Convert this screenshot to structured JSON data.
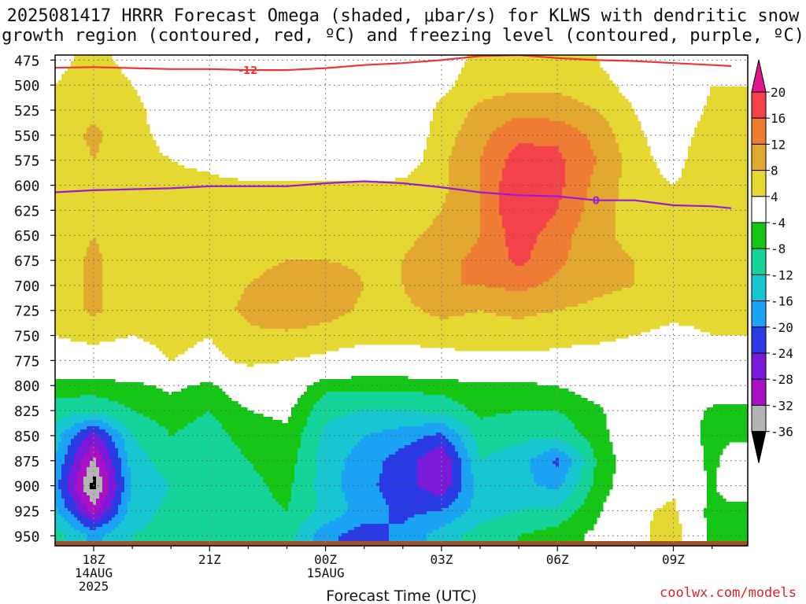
{
  "title": {
    "line1": "2025081417 HRRR Forecast Omega (shaded, μbar/s) for KLWS with dendritic snow",
    "line2": "growth region (contoured, red, ºC) and freezing level (contoured, purple, ºC)"
  },
  "credit": "coolwx.com/models",
  "chart_data": {
    "type": "heatmap",
    "xlabel": "Forecast Time (UTC)",
    "ylabel": "",
    "x": [
      "16.5Z",
      "17Z",
      "18Z",
      "19Z",
      "20Z",
      "21Z",
      "22Z",
      "23Z",
      "00Z",
      "01Z",
      "02Z",
      "03Z",
      "04Z",
      "05Z",
      "06Z",
      "07Z",
      "08Z",
      "09Z",
      "10Z",
      "10.5Z"
    ],
    "x_ticks": [
      {
        "label": "18Z",
        "sub": [
          "14AUG",
          "2025"
        ]
      },
      {
        "label": "21Z",
        "sub": []
      },
      {
        "label": "00Z",
        "sub": [
          "15AUG"
        ]
      },
      {
        "label": "03Z",
        "sub": []
      },
      {
        "label": "06Z",
        "sub": []
      },
      {
        "label": "09Z",
        "sub": []
      }
    ],
    "y_levels": [
      475,
      500,
      525,
      550,
      575,
      600,
      625,
      650,
      675,
      700,
      725,
      750,
      775,
      800,
      825,
      850,
      875,
      900,
      925,
      950
    ],
    "y_ticks": [
      "475",
      "500",
      "525",
      "550",
      "575",
      "600",
      "625",
      "650",
      "675",
      "700",
      "725",
      "750",
      "775",
      "800",
      "825",
      "850",
      "875",
      "900",
      "925",
      "950"
    ],
    "ylim": [
      470,
      960
    ],
    "omega": [
      [
        0,
        3,
        5,
        3,
        0,
        0,
        0,
        0,
        0,
        0,
        0,
        2,
        5,
        5,
        5,
        4,
        0,
        0,
        0,
        0
      ],
      [
        0,
        4,
        6,
        4,
        1,
        0,
        0,
        0,
        0,
        0,
        0,
        3,
        6,
        7,
        7,
        6,
        2,
        0,
        4,
        4
      ],
      [
        0,
        5,
        7,
        5,
        2,
        0,
        0,
        0,
        0,
        0,
        0,
        5,
        9,
        11,
        10,
        8,
        4,
        0,
        5,
        5
      ],
      [
        0,
        5,
        9,
        5,
        3,
        1,
        0,
        0,
        0,
        0,
        0,
        6,
        11,
        15,
        15,
        11,
        5,
        1,
        7,
        7
      ],
      [
        0,
        5,
        8,
        5,
        4,
        3,
        0,
        0,
        0,
        0,
        1,
        7,
        12,
        18,
        17,
        12,
        6,
        2,
        8,
        7
      ],
      [
        0,
        5,
        7,
        5,
        5,
        5,
        5,
        5,
        5,
        5,
        5,
        7,
        12,
        20,
        17,
        11,
        6,
        4,
        7,
        6
      ],
      [
        0,
        5,
        8,
        5,
        6,
        5,
        5,
        5,
        6,
        5,
        6,
        8,
        12,
        20,
        16,
        10,
        6,
        5,
        5,
        5
      ],
      [
        0,
        5,
        8,
        5,
        7,
        5,
        5,
        6,
        6,
        6,
        7,
        9,
        12,
        18,
        14,
        9,
        7,
        6,
        5,
        5
      ],
      [
        0,
        5,
        9,
        5,
        8,
        6,
        6,
        8,
        8,
        7,
        8,
        11,
        13,
        17,
        13,
        9,
        8,
        7,
        5,
        5
      ],
      [
        0,
        5,
        9,
        5,
        7,
        6,
        8,
        11,
        12,
        8,
        8,
        12,
        12,
        13,
        11,
        9,
        8,
        6,
        5,
        5
      ],
      [
        0,
        5,
        9,
        5,
        6,
        6,
        9,
        12,
        10,
        7,
        7,
        9,
        8,
        9,
        8,
        7,
        6,
        5,
        5,
        5
      ],
      [
        0,
        4,
        5,
        4,
        5,
        4,
        7,
        7,
        6,
        5,
        5,
        6,
        6,
        6,
        5,
        5,
        4,
        3,
        4,
        4
      ],
      [
        0,
        2,
        2,
        2,
        4,
        3,
        5,
        4,
        3,
        2,
        2,
        2,
        3,
        3,
        3,
        2,
        1,
        0,
        0,
        0
      ],
      [
        0,
        -6,
        -6,
        -5,
        -3,
        -5,
        0,
        0,
        -7,
        -7,
        -7,
        -6,
        -5,
        -5,
        -4,
        -1,
        0,
        0,
        0,
        0
      ],
      [
        0,
        -10,
        -11,
        -8,
        -6,
        -8,
        -4,
        -3,
        -11,
        -12,
        -12,
        -11,
        -7,
        -8,
        -8,
        -5,
        0,
        0,
        -5,
        -5
      ],
      [
        0,
        -14,
        -26,
        -12,
        -8,
        -10,
        -6,
        -5,
        -13,
        -16,
        -18,
        -21,
        -10,
        -11,
        -11,
        -6,
        0,
        3,
        -7,
        -5
      ],
      [
        0,
        -16,
        -33,
        -14,
        -10,
        -12,
        -8,
        -6,
        -14,
        -18,
        -22,
        -28,
        -12,
        -14,
        -21,
        -8,
        0,
        4,
        -6,
        0
      ],
      [
        0,
        -18,
        -38,
        -15,
        -12,
        -12,
        -9,
        -7,
        -14,
        -19,
        -22,
        -27,
        -14,
        -15,
        -17,
        -7,
        0,
        3,
        -5,
        0
      ],
      [
        0,
        -15,
        -30,
        -14,
        -11,
        -10,
        -9,
        -8,
        -13,
        -18,
        -21,
        -20,
        -14,
        -12,
        -11,
        -5,
        3,
        5,
        -6,
        -6
      ],
      [
        0,
        -10,
        -17,
        -12,
        -10,
        -10,
        -10,
        -10,
        -19,
        -22,
        -19,
        -14,
        -10,
        -8,
        -6,
        -3,
        2,
        7,
        -6,
        -6
      ]
    ],
    "contours": [
      {
        "name": "-12",
        "color": "#e83838",
        "points": [
          [
            16.5,
            483
          ],
          [
            18,
            482
          ],
          [
            19,
            483
          ],
          [
            20,
            484
          ],
          [
            21,
            484
          ],
          [
            22,
            485
          ],
          [
            23,
            485
          ],
          [
            0,
            483
          ],
          [
            1,
            480
          ],
          [
            2,
            478
          ],
          [
            3,
            475
          ],
          [
            4,
            471
          ],
          [
            5,
            470
          ],
          [
            6,
            473
          ],
          [
            7,
            475
          ],
          [
            8,
            476
          ],
          [
            9,
            478
          ],
          [
            10,
            480
          ],
          [
            10.5,
            481
          ]
        ]
      },
      {
        "name": "0",
        "color": "#9a1ad6",
        "points": [
          [
            16.5,
            611
          ],
          [
            17,
            607
          ],
          [
            18,
            605
          ],
          [
            19,
            604
          ],
          [
            20,
            603
          ],
          [
            21,
            601
          ],
          [
            22,
            601
          ],
          [
            23,
            601
          ],
          [
            0,
            598
          ],
          [
            1,
            596
          ],
          [
            2,
            598
          ],
          [
            3,
            602
          ],
          [
            4,
            607
          ],
          [
            5,
            610
          ],
          [
            6,
            611
          ],
          [
            7,
            615
          ],
          [
            8,
            615
          ],
          [
            9,
            620
          ],
          [
            10,
            621
          ],
          [
            10.5,
            623
          ]
        ]
      }
    ],
    "colorbar": {
      "labels": [
        "20",
        "16",
        "12",
        "8",
        "4",
        "-4",
        "-8",
        "-12",
        "-16",
        "-20",
        "-24",
        "-28",
        "-32",
        "-36"
      ],
      "bins": [
        {
          "lo": 20,
          "color": "#e2188a"
        },
        {
          "lo": 16,
          "color": "#f3424a"
        },
        {
          "lo": 12,
          "color": "#ee7c32"
        },
        {
          "lo": 8,
          "color": "#e2a830"
        },
        {
          "lo": 4,
          "color": "#e6d832"
        },
        {
          "lo": -4,
          "color": "#ffffff"
        },
        {
          "lo": -8,
          "color": "#16c616"
        },
        {
          "lo": -12,
          "color": "#14d49a"
        },
        {
          "lo": -16,
          "color": "#18c6d2"
        },
        {
          "lo": -20,
          "color": "#1aa2f4"
        },
        {
          "lo": -24,
          "color": "#2a3ae4"
        },
        {
          "lo": -28,
          "color": "#7a1ad8"
        },
        {
          "lo": -32,
          "color": "#a812c4"
        },
        {
          "lo": -36,
          "color": "#b4b4b4"
        },
        {
          "lo": -100,
          "color": "#000000"
        }
      ]
    },
    "ground_color": "#a0522d",
    "grid": true
  }
}
